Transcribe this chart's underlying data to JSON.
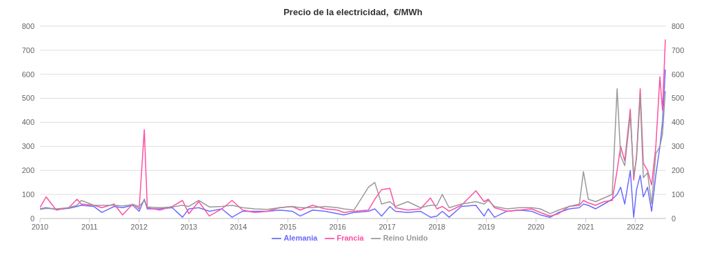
{
  "chart_data": {
    "type": "line",
    "title": "Precio de la electricidad,  €/MWh",
    "x": [
      "2010-01-01",
      "2010-02-15",
      "2010-05-01",
      "2010-08-01",
      "2010-10-01",
      "2010-11-01",
      "2011-02-01",
      "2011-04-01",
      "2011-07-01",
      "2011-09-01",
      "2011-11-15",
      "2012-01-01",
      "2012-02-08",
      "2012-03-01",
      "2012-06-01",
      "2012-09-01",
      "2012-11-15",
      "2013-01-01",
      "2013-03-15",
      "2013-06-01",
      "2013-09-01",
      "2013-11-15",
      "2014-02-01",
      "2014-05-01",
      "2014-08-01",
      "2014-11-01",
      "2015-02-01",
      "2015-04-01",
      "2015-07-01",
      "2015-10-01",
      "2016-01-01",
      "2016-02-15",
      "2016-05-01",
      "2016-08-15",
      "2016-10-01",
      "2016-11-20",
      "2017-01-20",
      "2017-03-01",
      "2017-06-01",
      "2017-09-01",
      "2017-11-15",
      "2018-01-01",
      "2018-02-10",
      "2018-04-01",
      "2018-07-01",
      "2018-10-15",
      "2018-12-15",
      "2019-01-15",
      "2019-03-01",
      "2019-06-01",
      "2019-09-01",
      "2019-12-01",
      "2020-02-01",
      "2020-04-15",
      "2020-06-15",
      "2020-09-01",
      "2020-11-15",
      "2020-12-15",
      "2021-01-20",
      "2021-03-15",
      "2021-05-15",
      "2021-07-15",
      "2021-08-20",
      "2021-09-15",
      "2021-10-15",
      "2021-11-25",
      "2021-12-20",
      "2022-01-10",
      "2022-02-06",
      "2022-03-01",
      "2022-04-01",
      "2022-05-01",
      "2022-06-01",
      "2022-07-01",
      "2022-07-20",
      "2022-08-10"
    ],
    "series": [
      {
        "name": "Alemania",
        "color": "#6b6bff",
        "values": [
          40,
          45,
          38,
          42,
          50,
          55,
          50,
          25,
          50,
          45,
          55,
          30,
          80,
          40,
          40,
          45,
          5,
          40,
          45,
          30,
          40,
          5,
          30,
          30,
          30,
          35,
          30,
          10,
          35,
          30,
          20,
          15,
          25,
          30,
          40,
          10,
          50,
          30,
          25,
          30,
          5,
          10,
          30,
          5,
          50,
          55,
          10,
          40,
          5,
          30,
          35,
          30,
          15,
          5,
          25,
          40,
          45,
          60,
          55,
          40,
          60,
          80,
          100,
          130,
          60,
          200,
          5,
          120,
          180,
          90,
          130,
          30,
          180,
          300,
          400,
          620
        ]
      },
      {
        "name": "Francia",
        "color": "#ff4fa3",
        "values": [
          45,
          90,
          35,
          45,
          80,
          60,
          55,
          45,
          60,
          15,
          60,
          40,
          370,
          45,
          35,
          50,
          75,
          20,
          70,
          10,
          40,
          75,
          35,
          25,
          30,
          45,
          50,
          35,
          55,
          40,
          35,
          25,
          30,
          35,
          80,
          120,
          125,
          45,
          35,
          40,
          85,
          40,
          50,
          30,
          55,
          115,
          70,
          80,
          45,
          30,
          35,
          40,
          25,
          10,
          20,
          50,
          55,
          75,
          65,
          55,
          70,
          75,
          200,
          300,
          240,
          455,
          160,
          260,
          540,
          230,
          200,
          140,
          300,
          590,
          450,
          745
        ]
      },
      {
        "name": "Reino Unido",
        "color": "#999999",
        "values": [
          38,
          42,
          40,
          45,
          55,
          75,
          55,
          55,
          55,
          52,
          58,
          50,
          75,
          48,
          45,
          48,
          55,
          50,
          75,
          48,
          50,
          55,
          45,
          40,
          38,
          45,
          50,
          45,
          45,
          50,
          45,
          40,
          35,
          130,
          150,
          60,
          70,
          50,
          70,
          45,
          55,
          55,
          100,
          45,
          60,
          70,
          60,
          75,
          50,
          40,
          45,
          45,
          40,
          20,
          35,
          50,
          60,
          195,
          80,
          70,
          85,
          100,
          540,
          260,
          220,
          430,
          180,
          250,
          510,
          170,
          190,
          60,
          270,
          300,
          350,
          530
        ]
      }
    ],
    "xlim": [
      "2010-01-01",
      "2022-08-15"
    ],
    "xticks": [
      {
        "value": "2010-01-01",
        "label": "2010"
      },
      {
        "value": "2011-01-01",
        "label": "2011"
      },
      {
        "value": "2012-01-01",
        "label": "2012"
      },
      {
        "value": "2013-01-01",
        "label": "2013"
      },
      {
        "value": "2014-01-01",
        "label": "2014"
      },
      {
        "value": "2015-01-01",
        "label": "2015"
      },
      {
        "value": "2016-01-01",
        "label": "2016"
      },
      {
        "value": "2017-01-01",
        "label": "2017"
      },
      {
        "value": "2018-01-01",
        "label": "2018"
      },
      {
        "value": "2019-01-01",
        "label": "2019"
      },
      {
        "value": "2020-01-01",
        "label": "2020"
      },
      {
        "value": "2021-01-01",
        "label": "2021"
      },
      {
        "value": "2022-01-01",
        "label": "2022"
      }
    ],
    "ylim": [
      0,
      800
    ],
    "yticks": [
      0,
      100,
      200,
      300,
      400,
      500,
      600,
      700,
      800
    ],
    "y2lim": [
      0,
      800
    ],
    "y2ticks": [
      0,
      100,
      200,
      300,
      400,
      500,
      600,
      700,
      800
    ],
    "grid": "y",
    "legend": "bottom",
    "marker": "none",
    "line_style": "solid"
  }
}
